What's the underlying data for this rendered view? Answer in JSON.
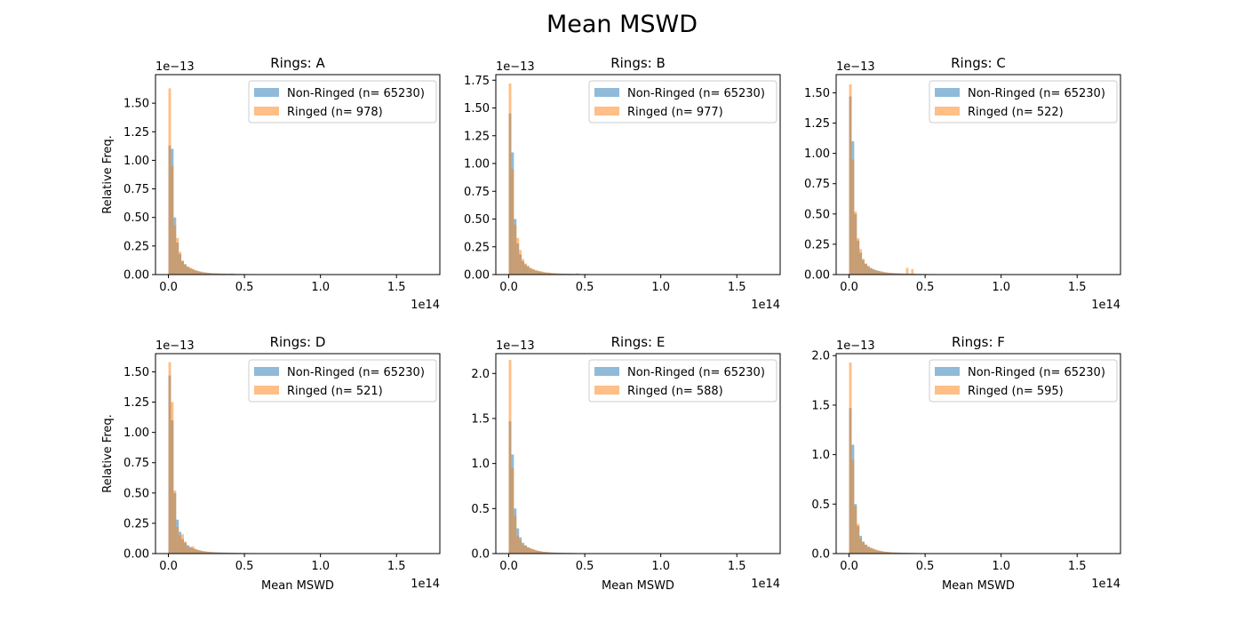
{
  "figure": {
    "title": "Mean MSWD"
  },
  "colors": {
    "non_ringed": "#1f77b4",
    "ringed": "#ff7f0e",
    "legend_edge": "#cccccc"
  },
  "chart_data": [
    {
      "type": "bar",
      "name": "A",
      "title": "Rings: A",
      "xlabel": "",
      "ylabel": "Relative Freq.",
      "xlim": [
        -0.085,
        1.785
      ],
      "ylim": [
        0,
        1.75
      ],
      "x_offset_label": "1e14",
      "y_offset_label": "1e−13",
      "xticks": [
        0.0,
        0.5,
        1.0,
        1.5
      ],
      "xtick_labels": [
        "0.0",
        "0.5",
        "1.0",
        "1.5"
      ],
      "yticks": [
        0,
        0.25,
        0.5,
        0.75,
        1.0,
        1.25,
        1.5
      ],
      "ytick_labels": [
        "0.00",
        "0.25",
        "0.50",
        "0.75",
        "1.00",
        "1.25",
        "1.50"
      ],
      "bin_width": 0.017,
      "legend": [
        "Non-Ringed (n= 65230)",
        "Ringed (n= 978)"
      ],
      "legend_position": "upper right",
      "series": [
        {
          "name": "Non-Ringed (n= 65230)",
          "values": [
            1.13,
            1.1,
            0.5,
            0.28,
            0.18,
            0.12,
            0.09,
            0.07,
            0.055,
            0.045,
            0.035,
            0.03,
            0.025,
            0.02,
            0.017,
            0.015,
            0.013,
            0.012,
            0.011,
            0.01,
            0.009,
            0.009,
            0.008,
            0.008,
            0.007,
            0.007,
            0.006,
            0.006,
            0.005,
            0.005,
            0.005,
            0.004,
            0.004,
            0.004,
            0.003,
            0.003,
            0.003,
            0.003,
            0.003,
            0.002,
            0.002,
            0.002,
            0.002,
            0.002,
            0.002,
            0.001,
            0.001,
            0.001,
            0.001,
            0.001
          ]
        },
        {
          "name": "Ringed (n= 978)",
          "values": [
            1.63,
            0.95,
            0.43,
            0.32,
            0.2,
            0.12,
            0.09,
            0.07,
            0.06,
            0.05,
            0.04,
            0.03,
            0.025,
            0.02,
            0.018,
            0.015,
            0.012,
            0.01,
            0.01,
            0.008,
            0.008,
            0.007,
            0.006,
            0.006,
            0.01,
            0.005,
            0.004,
            0.004,
            0.004,
            0.003,
            0.003,
            0.003,
            0.003,
            0.002,
            0.002,
            0.002,
            0.002,
            0.001,
            0.001,
            0.001,
            0.001,
            0.001,
            0.001,
            0.001,
            0.001,
            0.001,
            0.001,
            0.0,
            0.0,
            0.0
          ]
        }
      ]
    },
    {
      "type": "bar",
      "name": "B",
      "title": "Rings: B",
      "xlabel": "",
      "ylabel": "",
      "xlim": [
        -0.085,
        1.785
      ],
      "ylim": [
        0,
        1.8
      ],
      "x_offset_label": "1e14",
      "y_offset_label": "1e−13",
      "xticks": [
        0.0,
        0.5,
        1.0,
        1.5
      ],
      "xtick_labels": [
        "0.0",
        "0.5",
        "1.0",
        "1.5"
      ],
      "yticks": [
        0,
        0.25,
        0.5,
        0.75,
        1.0,
        1.25,
        1.5,
        1.75
      ],
      "ytick_labels": [
        "0.00",
        "0.25",
        "0.50",
        "0.75",
        "1.00",
        "1.25",
        "1.50",
        "1.75"
      ],
      "bin_width": 0.017,
      "legend": [
        "Non-Ringed (n= 65230)",
        "Ringed (n= 977)"
      ],
      "legend_position": "upper right",
      "series": [
        {
          "name": "Non-Ringed (n= 65230)",
          "values": [
            1.45,
            1.1,
            0.5,
            0.28,
            0.18,
            0.12,
            0.09,
            0.07,
            0.055,
            0.045,
            0.035,
            0.03,
            0.025,
            0.02,
            0.017,
            0.015,
            0.013,
            0.012,
            0.011,
            0.01,
            0.009,
            0.009,
            0.008,
            0.008,
            0.007,
            0.007,
            0.006,
            0.006,
            0.005,
            0.005,
            0.005,
            0.004,
            0.004,
            0.004,
            0.003,
            0.003,
            0.003,
            0.003,
            0.003,
            0.002,
            0.002,
            0.002,
            0.002,
            0.002,
            0.002,
            0.001,
            0.001,
            0.001,
            0.001,
            0.001
          ]
        },
        {
          "name": "Ringed (n= 977)",
          "values": [
            1.72,
            0.95,
            0.45,
            0.33,
            0.22,
            0.14,
            0.1,
            0.08,
            0.06,
            0.05,
            0.04,
            0.035,
            0.03,
            0.025,
            0.02,
            0.018,
            0.015,
            0.012,
            0.01,
            0.008,
            0.007,
            0.006,
            0.006,
            0.005,
            0.005,
            0.004,
            0.012,
            0.004,
            0.004,
            0.003,
            0.003,
            0.003,
            0.003,
            0.002,
            0.002,
            0.002,
            0.002,
            0.001,
            0.001,
            0.001,
            0.001,
            0.001,
            0.001,
            0.001,
            0.001,
            0.001,
            0.001,
            0.001,
            0.001,
            0.001
          ]
        }
      ]
    },
    {
      "type": "bar",
      "name": "C",
      "title": "Rings: C",
      "xlabel": "",
      "ylabel": "",
      "xlim": [
        -0.085,
        1.785
      ],
      "ylim": [
        0,
        1.65
      ],
      "x_offset_label": "1e14",
      "y_offset_label": "1e−13",
      "xticks": [
        0.0,
        0.5,
        1.0,
        1.5
      ],
      "xtick_labels": [
        "0.0",
        "0.5",
        "1.0",
        "1.5"
      ],
      "yticks": [
        0,
        0.25,
        0.5,
        0.75,
        1.0,
        1.25,
        1.5
      ],
      "ytick_labels": [
        "0.00",
        "0.25",
        "0.50",
        "0.75",
        "1.00",
        "1.25",
        "1.50"
      ],
      "bin_width": 0.017,
      "legend": [
        "Non-Ringed (n= 65230)",
        "Ringed (n= 522)"
      ],
      "legend_position": "upper right",
      "series": [
        {
          "name": "Non-Ringed (n= 65230)",
          "values": [
            1.47,
            1.1,
            0.5,
            0.28,
            0.18,
            0.12,
            0.09,
            0.07,
            0.055,
            0.045,
            0.035,
            0.03,
            0.025,
            0.02,
            0.017,
            0.015,
            0.013,
            0.012,
            0.011,
            0.01,
            0.009,
            0.009,
            0.008,
            0.008,
            0.007,
            0.007,
            0.006,
            0.006,
            0.005,
            0.005,
            0.005,
            0.004,
            0.004,
            0.004,
            0.003,
            0.003,
            0.003,
            0.003,
            0.003,
            0.002,
            0.002,
            0.002,
            0.002,
            0.002,
            0.002,
            0.001,
            0.001,
            0.001,
            0.001,
            0.001
          ]
        },
        {
          "name": "Ringed (n= 522)",
          "values": [
            1.57,
            0.95,
            0.52,
            0.3,
            0.21,
            0.13,
            0.09,
            0.07,
            0.05,
            0.04,
            0.035,
            0.03,
            0.025,
            0.02,
            0.018,
            0.015,
            0.012,
            0.01,
            0.01,
            0.009,
            0.008,
            0.007,
            0.055,
            0.006,
            0.045,
            0.005,
            0.004,
            0.004,
            0.004,
            0.003,
            0.003,
            0.003,
            0.003,
            0.002,
            0.002,
            0.002,
            0.002,
            0.001,
            0.001,
            0.001,
            0.001,
            0.001,
            0.001,
            0.001,
            0.001,
            0.001,
            0.001,
            0.0,
            0.0,
            0.0
          ]
        }
      ]
    },
    {
      "type": "bar",
      "name": "D",
      "title": "Rings: D",
      "xlabel": "Mean MSWD",
      "ylabel": "Relative Freq.",
      "xlim": [
        -0.085,
        1.785
      ],
      "ylim": [
        0,
        1.65
      ],
      "x_offset_label": "1e14",
      "y_offset_label": "1e−13",
      "xticks": [
        0.0,
        0.5,
        1.0,
        1.5
      ],
      "xtick_labels": [
        "0.0",
        "0.5",
        "1.0",
        "1.5"
      ],
      "yticks": [
        0,
        0.25,
        0.5,
        0.75,
        1.0,
        1.25,
        1.5
      ],
      "ytick_labels": [
        "0.00",
        "0.25",
        "0.50",
        "0.75",
        "1.00",
        "1.25",
        "1.50"
      ],
      "bin_width": 0.017,
      "legend": [
        "Non-Ringed (n= 65230)",
        "Ringed (n= 521)"
      ],
      "legend_position": "upper right",
      "series": [
        {
          "name": "Non-Ringed (n= 65230)",
          "values": [
            1.47,
            1.1,
            0.5,
            0.28,
            0.18,
            0.12,
            0.09,
            0.07,
            0.055,
            0.045,
            0.035,
            0.03,
            0.025,
            0.02,
            0.017,
            0.015,
            0.013,
            0.012,
            0.011,
            0.01,
            0.009,
            0.009,
            0.008,
            0.008,
            0.007,
            0.007,
            0.006,
            0.006,
            0.005,
            0.005,
            0.005,
            0.004,
            0.004,
            0.004,
            0.003,
            0.003,
            0.003,
            0.003,
            0.003,
            0.002,
            0.002,
            0.002,
            0.002,
            0.002,
            0.002,
            0.001,
            0.001,
            0.001,
            0.001,
            0.001
          ]
        },
        {
          "name": "Ringed (n= 521)",
          "values": [
            1.58,
            1.25,
            0.52,
            0.22,
            0.15,
            0.16,
            0.1,
            0.06,
            0.05,
            0.06,
            0.04,
            0.03,
            0.025,
            0.02,
            0.018,
            0.015,
            0.012,
            0.01,
            0.01,
            0.009,
            0.008,
            0.007,
            0.006,
            0.006,
            0.006,
            0.005,
            0.004,
            0.004,
            0.004,
            0.003,
            0.003,
            0.003,
            0.003,
            0.002,
            0.002,
            0.002,
            0.002,
            0.001,
            0.001,
            0.001,
            0.001,
            0.001,
            0.001,
            0.001,
            0.001,
            0.001,
            0.001,
            0.0,
            0.0,
            0.0
          ]
        }
      ]
    },
    {
      "type": "bar",
      "name": "E",
      "title": "Rings: E",
      "xlabel": "Mean MSWD",
      "ylabel": "",
      "xlim": [
        -0.085,
        1.785
      ],
      "ylim": [
        0,
        2.22
      ],
      "x_offset_label": "1e14",
      "y_offset_label": "1e−13",
      "xticks": [
        0.0,
        0.5,
        1.0,
        1.5
      ],
      "xtick_labels": [
        "0.0",
        "0.5",
        "1.0",
        "1.5"
      ],
      "yticks": [
        0,
        0.5,
        1.0,
        1.5,
        2.0
      ],
      "ytick_labels": [
        "0.0",
        "0.5",
        "1.0",
        "1.5",
        "2.0"
      ],
      "bin_width": 0.017,
      "legend": [
        "Non-Ringed (n= 65230)",
        "Ringed (n= 588)"
      ],
      "legend_position": "upper right",
      "series": [
        {
          "name": "Non-Ringed (n= 65230)",
          "values": [
            1.47,
            1.1,
            0.5,
            0.28,
            0.18,
            0.12,
            0.09,
            0.07,
            0.055,
            0.045,
            0.035,
            0.03,
            0.025,
            0.02,
            0.017,
            0.015,
            0.013,
            0.012,
            0.011,
            0.01,
            0.009,
            0.009,
            0.008,
            0.008,
            0.007,
            0.007,
            0.006,
            0.006,
            0.005,
            0.005,
            0.005,
            0.004,
            0.004,
            0.004,
            0.003,
            0.003,
            0.003,
            0.003,
            0.003,
            0.002,
            0.002,
            0.002,
            0.002,
            0.002,
            0.002,
            0.001,
            0.001,
            0.001,
            0.001,
            0.001
          ]
        },
        {
          "name": "Ringed (n= 588)",
          "values": [
            2.15,
            0.95,
            0.42,
            0.2,
            0.15,
            0.1,
            0.09,
            0.07,
            0.06,
            0.05,
            0.04,
            0.03,
            0.025,
            0.02,
            0.018,
            0.015,
            0.012,
            0.01,
            0.01,
            0.009,
            0.008,
            0.007,
            0.006,
            0.006,
            0.006,
            0.005,
            0.004,
            0.004,
            0.004,
            0.003,
            0.003,
            0.003,
            0.003,
            0.002,
            0.002,
            0.002,
            0.002,
            0.001,
            0.001,
            0.001,
            0.001,
            0.001,
            0.001,
            0.001,
            0.001,
            0.001,
            0.001,
            0.0,
            0.0,
            0.0
          ]
        }
      ]
    },
    {
      "type": "bar",
      "name": "F",
      "title": "Rings: F",
      "xlabel": "Mean MSWD",
      "ylabel": "",
      "xlim": [
        -0.085,
        1.785
      ],
      "ylim": [
        0,
        2.02
      ],
      "x_offset_label": "1e14",
      "y_offset_label": "1e−13",
      "xticks": [
        0.0,
        0.5,
        1.0,
        1.5
      ],
      "xtick_labels": [
        "0.0",
        "0.5",
        "1.0",
        "1.5"
      ],
      "yticks": [
        0,
        0.5,
        1.0,
        1.5,
        2.0
      ],
      "ytick_labels": [
        "0.0",
        "0.5",
        "1.0",
        "1.5",
        "2.0"
      ],
      "bin_width": 0.017,
      "legend": [
        "Non-Ringed (n= 65230)",
        "Ringed (n= 595)"
      ],
      "legend_position": "upper right",
      "series": [
        {
          "name": "Non-Ringed (n= 65230)",
          "values": [
            1.47,
            1.1,
            0.5,
            0.28,
            0.18,
            0.12,
            0.09,
            0.07,
            0.055,
            0.045,
            0.035,
            0.03,
            0.025,
            0.02,
            0.017,
            0.015,
            0.013,
            0.012,
            0.011,
            0.01,
            0.009,
            0.009,
            0.008,
            0.008,
            0.007,
            0.007,
            0.006,
            0.006,
            0.005,
            0.005,
            0.005,
            0.004,
            0.004,
            0.004,
            0.003,
            0.003,
            0.003,
            0.003,
            0.003,
            0.002,
            0.002,
            0.002,
            0.002,
            0.002,
            0.002,
            0.001,
            0.001,
            0.001,
            0.001,
            0.001
          ]
        },
        {
          "name": "Ringed (n= 595)",
          "values": [
            1.93,
            0.95,
            0.48,
            0.3,
            0.15,
            0.12,
            0.09,
            0.07,
            0.06,
            0.05,
            0.04,
            0.03,
            0.025,
            0.02,
            0.018,
            0.015,
            0.012,
            0.01,
            0.01,
            0.009,
            0.008,
            0.007,
            0.006,
            0.006,
            0.006,
            0.005,
            0.004,
            0.004,
            0.004,
            0.003,
            0.003,
            0.003,
            0.003,
            0.002,
            0.002,
            0.002,
            0.002,
            0.001,
            0.001,
            0.001,
            0.001,
            0.001,
            0.001,
            0.001,
            0.001,
            0.001,
            0.001,
            0.0,
            0.0,
            0.0
          ]
        }
      ]
    }
  ]
}
